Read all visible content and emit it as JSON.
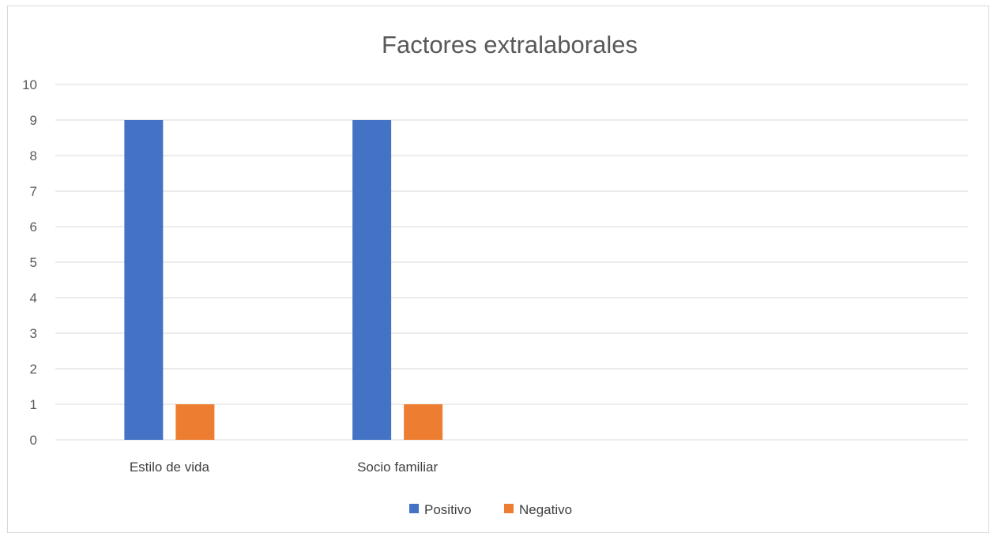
{
  "chart_data": {
    "type": "bar",
    "title": "Factores extralaborales",
    "xlabel": "",
    "ylabel": "",
    "categories": [
      "Estilo de vida",
      "Socio familiar",
      "",
      ""
    ],
    "series": [
      {
        "name": "Positivo",
        "color": "#4472C4",
        "values": [
          9,
          9,
          null,
          null
        ]
      },
      {
        "name": "Negativo",
        "color": "#ED7D31",
        "values": [
          1,
          1,
          null,
          null
        ]
      }
    ],
    "ylim": [
      0,
      10
    ],
    "yticks": [
      0,
      1,
      2,
      3,
      4,
      5,
      6,
      7,
      8,
      9,
      10
    ],
    "grid": true,
    "legend_position": "bottom"
  }
}
